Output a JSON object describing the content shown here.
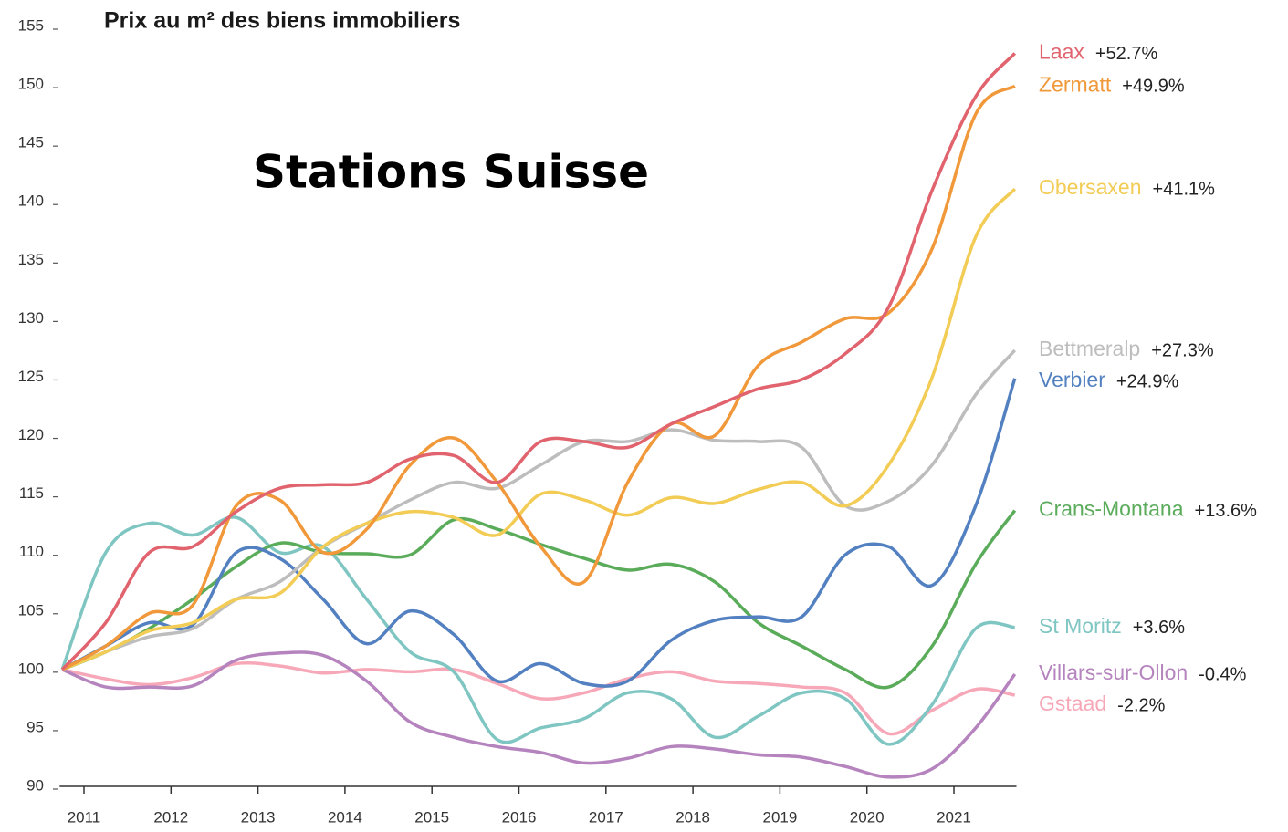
{
  "chart_data": {
    "type": "line",
    "title": "Prix au m² des biens immobiliers",
    "subtitle": "Stations Suisse",
    "x": [
      2010.75,
      2011.25,
      2011.75,
      2012.25,
      2012.75,
      2013.25,
      2013.75,
      2014.25,
      2014.75,
      2015.25,
      2015.75,
      2016.25,
      2016.75,
      2017.25,
      2017.75,
      2018.25,
      2018.75,
      2019.25,
      2019.75,
      2020.25,
      2020.75,
      2021.25,
      2021.7
    ],
    "xlim": [
      2010.72,
      2021.75
    ],
    "xticks": [
      2011,
      2012,
      2013,
      2014,
      2015,
      2016,
      2017,
      2018,
      2019,
      2020,
      2021
    ],
    "ylim": [
      90,
      155
    ],
    "yticks": [
      90,
      95,
      100,
      105,
      110,
      115,
      120,
      125,
      130,
      135,
      140,
      145,
      150,
      155
    ],
    "series": [
      {
        "name": "Laax",
        "change": "+52.7%",
        "color": "#e0636e",
        "values": [
          100,
          104,
          110,
          110.5,
          113.5,
          115.5,
          115.8,
          116,
          118,
          118.3,
          116,
          119.5,
          119.5,
          119,
          121,
          122.5,
          124,
          124.8,
          127,
          131,
          141,
          149,
          152.7
        ]
      },
      {
        "name": "Zermatt",
        "change": "+49.9%",
        "color": "#f0983a",
        "values": [
          100,
          102,
          104.8,
          105.5,
          114,
          114.5,
          110,
          112,
          117.5,
          119.8,
          116,
          110.5,
          107.5,
          116,
          121,
          120,
          126,
          128,
          130,
          130.5,
          136,
          147.5,
          149.9
        ]
      },
      {
        "name": "Obersaxen",
        "change": "+41.1%",
        "color": "#f2cc55",
        "values": [
          100,
          101.5,
          103.3,
          104,
          106,
          106.5,
          110.5,
          112.5,
          113.5,
          113,
          111.5,
          115,
          114.5,
          113.2,
          114.7,
          114.2,
          115.4,
          116,
          114,
          117.5,
          125,
          137,
          141.1
        ]
      },
      {
        "name": "Bettmeralp",
        "change": "+27.3%",
        "color": "#bdbdbd",
        "values": [
          100,
          101.5,
          102.8,
          103.5,
          106,
          107.5,
          110.5,
          112.5,
          114.5,
          116,
          115.5,
          117.5,
          119.5,
          119.5,
          120.5,
          119.6,
          119.5,
          119,
          114,
          114.4,
          117.5,
          123.5,
          127.3
        ]
      },
      {
        "name": "Verbier",
        "change": "+24.9%",
        "color": "#5280c0",
        "values": [
          100,
          102,
          104,
          103.8,
          110,
          109.5,
          106,
          102.2,
          105,
          103,
          99,
          100.5,
          98.8,
          99,
          102.5,
          104.2,
          104.5,
          104.5,
          109.8,
          110.5,
          107.2,
          114,
          124.9
        ]
      },
      {
        "name": "Crans-Montana",
        "change": "+13.6%",
        "color": "#5aab5a",
        "values": [
          100,
          101.5,
          103.5,
          106,
          108.8,
          110.8,
          110,
          109.9,
          109.8,
          112.8,
          112,
          110.7,
          109.5,
          108.5,
          109,
          107.5,
          104,
          102,
          100,
          98.5,
          102,
          109,
          113.6
        ]
      },
      {
        "name": "St Moritz",
        "change": "+3.6%",
        "color": "#7fc6c3",
        "values": [
          100,
          110,
          112.5,
          111.5,
          113,
          110,
          110.5,
          106,
          101.5,
          99.8,
          94,
          95,
          95.8,
          98,
          97.5,
          94.2,
          96,
          98,
          97.5,
          93.6,
          97,
          103.5,
          103.6
        ]
      },
      {
        "name": "Villars-sur-Ollon",
        "change": "-0.4%",
        "color": "#b583bd",
        "values": [
          100,
          98.5,
          98.5,
          98.6,
          100.8,
          101.4,
          101.2,
          99,
          95.5,
          94.2,
          93.4,
          92.9,
          92,
          92.4,
          93.4,
          93.2,
          92.7,
          92.5,
          91.7,
          90.8,
          91.5,
          95,
          99.6
        ]
      },
      {
        "name": "Gstaad",
        "change": "-2.2%",
        "color": "#f7a8b8",
        "values": [
          100,
          99.2,
          98.7,
          99.3,
          100.5,
          100.3,
          99.7,
          100,
          99.8,
          100,
          98.8,
          97.5,
          98,
          99.2,
          99.8,
          99,
          98.8,
          98.5,
          98,
          94.5,
          96.5,
          98.3,
          97.8
        ]
      }
    ]
  }
}
